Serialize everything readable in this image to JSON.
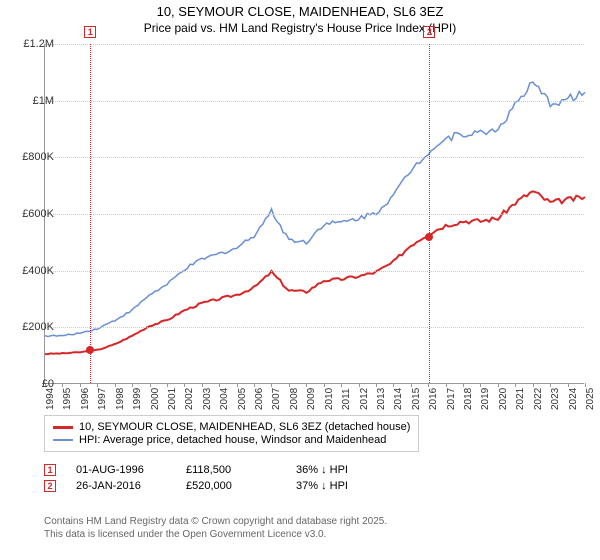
{
  "title_line1": "10, SEYMOUR CLOSE, MAIDENHEAD, SL6 3EZ",
  "title_line2": "Price paid vs. HM Land Registry's House Price Index (HPI)",
  "chart": {
    "type": "line",
    "background_color": "#ffffff",
    "grid_color": "#cccccc",
    "axis_color": "#999999",
    "y": {
      "min": 0,
      "max": 1200000,
      "step": 200000,
      "labels": [
        "£0",
        "£200K",
        "£400K",
        "£600K",
        "£800K",
        "£1M",
        "£1.2M"
      ]
    },
    "x": {
      "min": 1994,
      "max": 2025,
      "step": 1,
      "labels": [
        "1994",
        "1995",
        "1996",
        "1997",
        "1998",
        "1999",
        "2000",
        "2001",
        "2002",
        "2003",
        "2004",
        "2005",
        "2006",
        "2007",
        "2008",
        "2009",
        "2010",
        "2011",
        "2012",
        "2013",
        "2014",
        "2015",
        "2016",
        "2017",
        "2018",
        "2019",
        "2020",
        "2021",
        "2022",
        "2023",
        "2024",
        "2025"
      ]
    },
    "series": [
      {
        "name": "subject",
        "label": "10, SEYMOUR CLOSE, MAIDENHEAD, SL6 3EZ (detached house)",
        "color": "#d62728",
        "line_width": 2,
        "years": [
          1994,
          1995,
          1996,
          1997,
          1998,
          1999,
          2000,
          2001,
          2002,
          2003,
          2004,
          2005,
          2006,
          2007,
          2008,
          2009,
          2010,
          2011,
          2012,
          2013,
          2014,
          2015,
          2016,
          2017,
          2018,
          2019,
          2020,
          2021,
          2022,
          2023,
          2024,
          2025
        ],
        "values": [
          106000,
          108000,
          112000,
          120000,
          140000,
          170000,
          205000,
          225000,
          260000,
          285000,
          300000,
          315000,
          340000,
          395000,
          330000,
          325000,
          365000,
          370000,
          380000,
          395000,
          430000,
          490000,
          530000,
          560000,
          575000,
          575000,
          585000,
          640000,
          680000,
          640000,
          650000,
          660000
        ]
      },
      {
        "name": "hpi",
        "label": "HPI: Average price, detached house, Windsor and Maidenhead",
        "color": "#6a8fd4",
        "line_width": 1.5,
        "years": [
          1994,
          1995,
          1996,
          1997,
          1998,
          1999,
          2000,
          2001,
          2002,
          2003,
          2004,
          2005,
          2006,
          2007,
          2008,
          2009,
          2010,
          2011,
          2012,
          2013,
          2014,
          2015,
          2016,
          2017,
          2018,
          2019,
          2020,
          2021,
          2022,
          2023,
          2024,
          2025
        ],
        "values": [
          170000,
          170000,
          180000,
          195000,
          225000,
          260000,
          315000,
          350000,
          405000,
          440000,
          460000,
          480000,
          525000,
          610000,
          510000,
          500000,
          565000,
          570000,
          585000,
          605000,
          665000,
          755000,
          820000,
          865000,
          885000,
          885000,
          900000,
          985000,
          1060000,
          990000,
          1005000,
          1030000
        ]
      }
    ],
    "events": [
      {
        "n": "1",
        "year": 1996.6,
        "value": 118500,
        "color": "#d62728"
      },
      {
        "n": "2",
        "year": 2016.07,
        "value": 520000,
        "color": "#d62728"
      }
    ]
  },
  "legend": {
    "row1": "10, SEYMOUR CLOSE, MAIDENHEAD, SL6 3EZ (detached house)",
    "row2": "HPI: Average price, detached house, Windsor and Maidenhead"
  },
  "event_table": [
    {
      "n": "1",
      "color": "#d62728",
      "date": "01-AUG-1996",
      "price": "£118,500",
      "diff": "36% ↓ HPI"
    },
    {
      "n": "2",
      "color": "#d62728",
      "date": "26-JAN-2016",
      "price": "£520,000",
      "diff": "37% ↓ HPI"
    }
  ],
  "footer_line1": "Contains HM Land Registry data © Crown copyright and database right 2025.",
  "footer_line2": "This data is licensed under the Open Government Licence v3.0."
}
